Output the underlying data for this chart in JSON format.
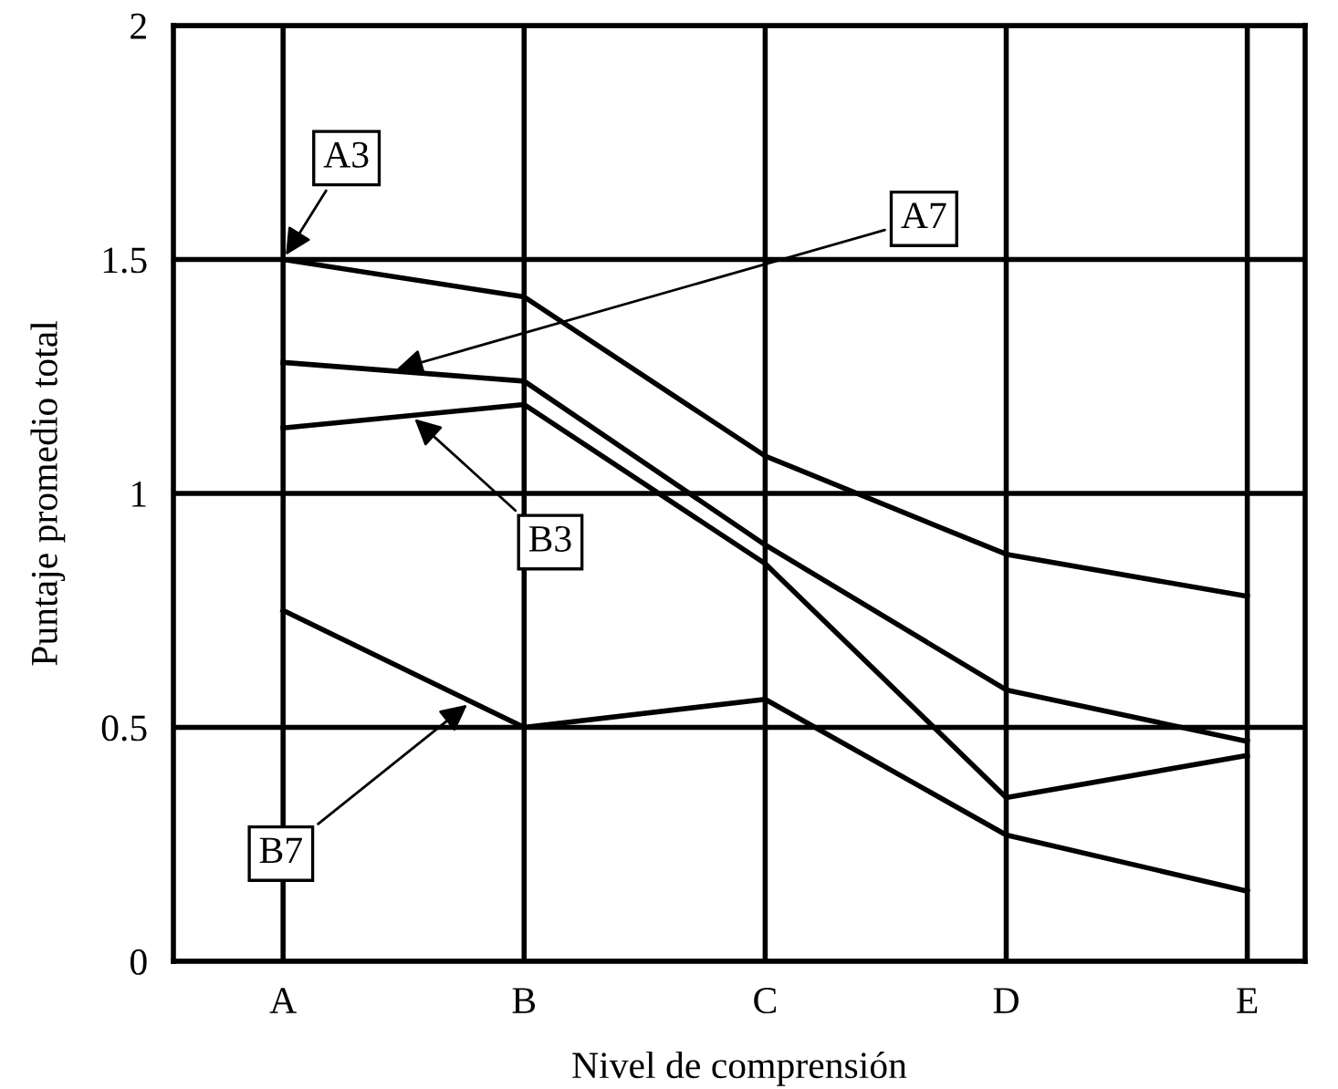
{
  "chart_data": {
    "type": "line",
    "xlabel": "Nivel de comprensión",
    "ylabel": "Puntaje promedio total",
    "categories": [
      "A",
      "B",
      "C",
      "D",
      "E"
    ],
    "series": [
      {
        "name": "A3",
        "color": "#000000",
        "values": [
          1.5,
          1.42,
          1.08,
          0.87,
          0.78
        ]
      },
      {
        "name": "A7",
        "color": "#000000",
        "values": [
          1.28,
          1.24,
          0.89,
          0.58,
          0.47
        ]
      },
      {
        "name": "B3",
        "color": "#000000",
        "values": [
          1.14,
          1.19,
          0.85,
          0.35,
          0.44
        ]
      },
      {
        "name": "B7",
        "color": "#000000",
        "values": [
          0.75,
          0.5,
          0.56,
          0.27,
          0.15
        ]
      }
    ],
    "ylim": [
      0,
      2
    ],
    "yticks": [
      0,
      0.5,
      1,
      1.5,
      2
    ],
    "grid": true,
    "legend": false,
    "marker": "none",
    "line_style": "solid"
  }
}
